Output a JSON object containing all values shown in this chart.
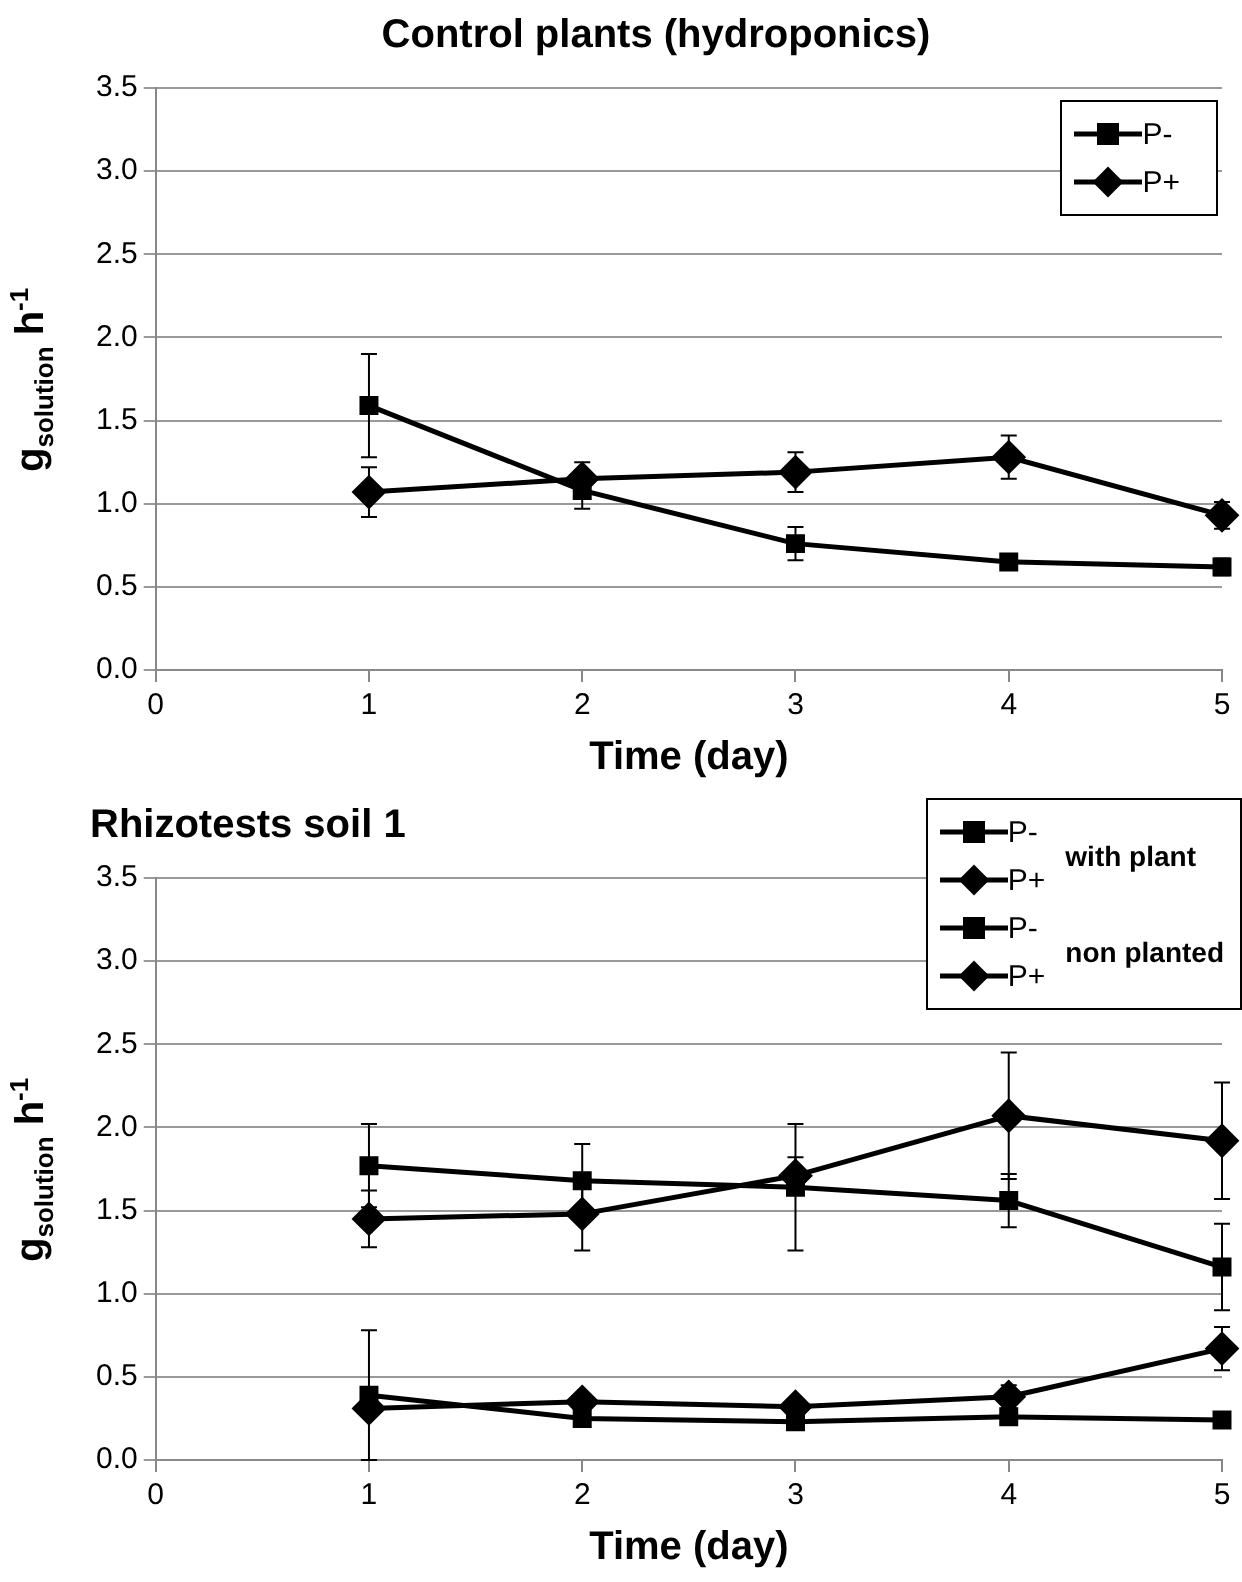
{
  "chart_data": [
    {
      "type": "line",
      "title": "Control plants (hydroponics)",
      "xlabel": "Time (day)",
      "ylabel": "g$_{solution}$ h$^{-1}$",
      "x": [
        1,
        2,
        3,
        4,
        5
      ],
      "xlim": [
        0,
        5
      ],
      "xticks": [
        0,
        1,
        2,
        3,
        4,
        5
      ],
      "ylim": [
        0,
        3.5
      ],
      "yticks": [
        {
          "value": 0,
          "label": "0.0"
        },
        {
          "value": 0.5,
          "label": "0.5"
        },
        {
          "value": 1,
          "label": "1.0"
        },
        {
          "value": 1.5,
          "label": "1.5"
        },
        {
          "value": 2,
          "label": "2.0"
        },
        {
          "value": 2.5,
          "label": "2.5"
        },
        {
          "value": 3,
          "label": "3.0"
        },
        {
          "value": 3.5,
          "label": "3.5"
        }
      ],
      "grid": "y",
      "legend": "top right",
      "series": [
        {
          "name": "P-",
          "color": "#000000",
          "marker": "square",
          "values": [
            1.59,
            1.08,
            0.76,
            0.65,
            0.62
          ],
          "errors": [
            0.31,
            0.11,
            0.1,
            null,
            0.05
          ]
        },
        {
          "name": "P+",
          "color": "#000000",
          "marker": "diamond",
          "values": [
            1.07,
            1.15,
            1.19,
            1.28,
            0.93
          ],
          "errors": [
            0.15,
            0.1,
            0.12,
            0.13,
            0.08
          ]
        }
      ]
    },
    {
      "type": "line",
      "title": "Rhizotests soil 1",
      "xlabel": "Time (day)",
      "ylabel": "g$_{solution}$ h$^{-1}$",
      "x": [
        1,
        2,
        3,
        4,
        5
      ],
      "xlim": [
        0,
        5
      ],
      "xticks": [
        0,
        1,
        2,
        3,
        4,
        5
      ],
      "ylim": [
        0,
        3.5
      ],
      "yticks": [
        {
          "value": 0,
          "label": "0.0"
        },
        {
          "value": 0.5,
          "label": "0.5"
        },
        {
          "value": 1,
          "label": "1.0"
        },
        {
          "value": 1.5,
          "label": "1.5"
        },
        {
          "value": 2,
          "label": "2.0"
        },
        {
          "value": 2.5,
          "label": "2.5"
        },
        {
          "value": 3,
          "label": "3.0"
        },
        {
          "value": 3.5,
          "label": "3.5"
        }
      ],
      "grid": "y",
      "legend": "top right",
      "annotations": [
        "with plant",
        "non planted"
      ],
      "series": [
        {
          "name": "P-",
          "color": "#000000",
          "marker": "square",
          "values": [
            1.77,
            1.68,
            1.64,
            1.56,
            1.16
          ],
          "errors": [
            0.25,
            0.22,
            0.38,
            0.16,
            0.26
          ]
        },
        {
          "name": "P+",
          "color": "#000000",
          "marker": "diamond",
          "values": [
            1.45,
            1.48,
            1.71,
            2.07,
            1.92
          ],
          "errors": [
            0.17,
            0.22,
            0.11,
            0.38,
            0.35
          ]
        },
        {
          "name": "P-",
          "color": "#000000",
          "marker": "square",
          "values": [
            0.39,
            0.25,
            0.23,
            0.26,
            0.24
          ],
          "errors": [
            0.39,
            null,
            null,
            0.05,
            null
          ]
        },
        {
          "name": "P+",
          "color": "#000000",
          "marker": "diamond",
          "values": [
            0.31,
            0.35,
            0.32,
            0.38,
            0.67
          ],
          "errors": [
            null,
            null,
            null,
            0.07,
            0.13
          ]
        }
      ]
    }
  ]
}
